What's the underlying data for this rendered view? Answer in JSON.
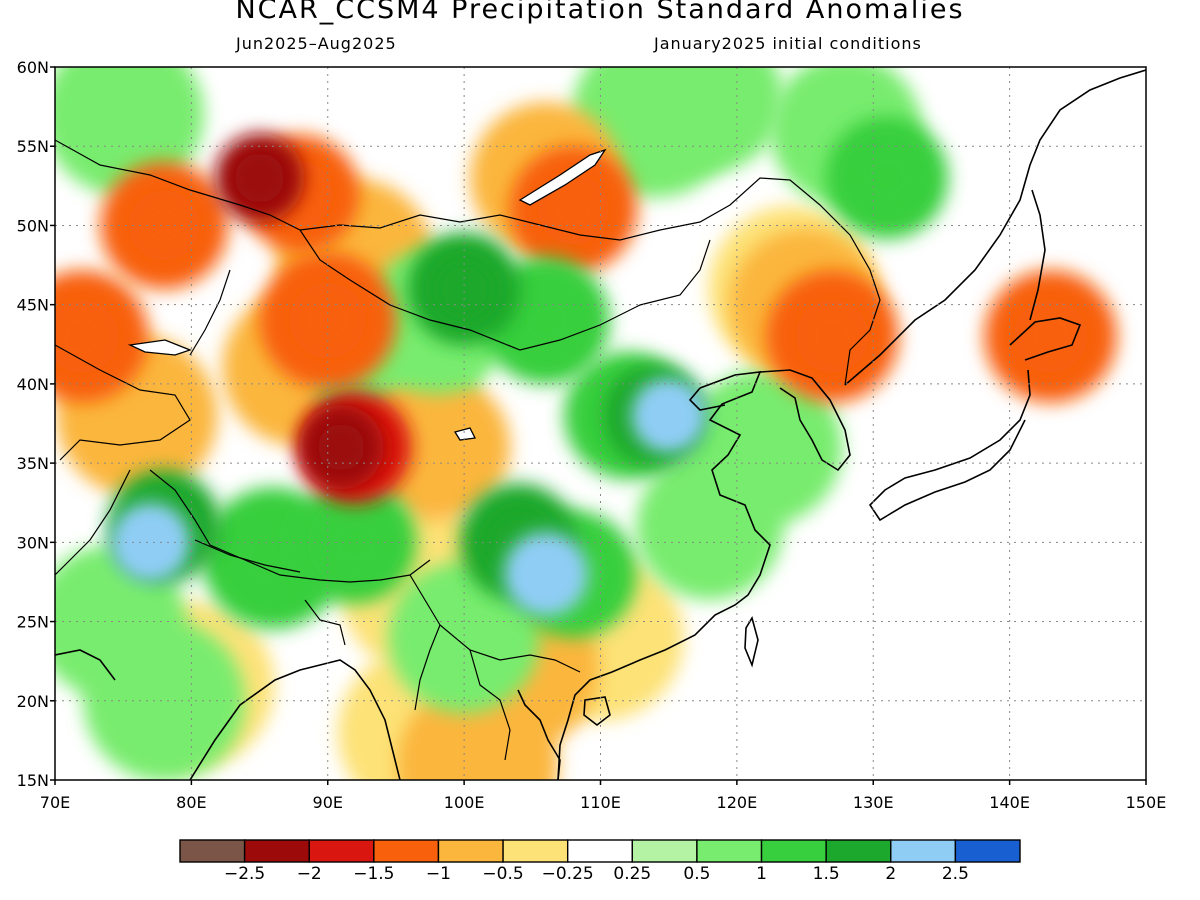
{
  "title": "NCAR_CCSM4 Precipitation Standard Anomalies",
  "subtitle_left": "Jun2025–Aug2025",
  "subtitle_right": "January2025 initial conditions",
  "axes": {
    "lat_labels": [
      "60N",
      "55N",
      "50N",
      "45N",
      "40N",
      "35N",
      "30N",
      "25N",
      "20N",
      "15N"
    ],
    "lat_values": [
      60,
      55,
      50,
      45,
      40,
      35,
      30,
      25,
      20,
      15
    ],
    "lon_labels": [
      "70E",
      "80E",
      "90E",
      "100E",
      "110E",
      "120E",
      "130E",
      "140E",
      "150E"
    ],
    "lon_values": [
      70,
      80,
      90,
      100,
      110,
      120,
      130,
      140,
      150
    ],
    "lon_range": [
      70,
      150
    ],
    "lat_range": [
      15,
      60
    ],
    "grid": "dotted"
  },
  "colorbar": {
    "colors": [
      "#7b5548",
      "#9c0a0a",
      "#d9160f",
      "#f8600c",
      "#fbb63d",
      "#fde277",
      "#ffffff",
      "#b5f3a4",
      "#78ec6e",
      "#38cf3e",
      "#1ca82c",
      "#8fcdf5",
      "#1860d1"
    ],
    "tick_labels": [
      "−2.5",
      "−2",
      "−1.5",
      "−1",
      "−0.5",
      "−0.25",
      "0.25",
      "0.5",
      "1",
      "1.5",
      "2",
      "2.5"
    ]
  },
  "anomaly_regions": [
    {
      "lon": 72,
      "lat": 43,
      "value": -1.2
    },
    {
      "lon": 78,
      "lat": 50,
      "value": -1.3
    },
    {
      "lon": 88,
      "lat": 52,
      "value": -1.5
    },
    {
      "lon": 85,
      "lat": 53,
      "value": -2.1
    },
    {
      "lon": 92,
      "lat": 48,
      "value": -0.7
    },
    {
      "lon": 88,
      "lat": 41,
      "value": -0.7
    },
    {
      "lon": 90,
      "lat": 44,
      "value": -1.1
    },
    {
      "lon": 92,
      "lat": 36,
      "value": -1.6
    },
    {
      "lon": 91,
      "lat": 36,
      "value": -2.2
    },
    {
      "lon": 98,
      "lat": 36,
      "value": -0.9
    },
    {
      "lon": 76,
      "lat": 38,
      "value": -0.6
    },
    {
      "lon": 106,
      "lat": 53,
      "value": -0.8
    },
    {
      "lon": 108,
      "lat": 51,
      "value": -1.3
    },
    {
      "lon": 125,
      "lat": 45,
      "value": -0.8
    },
    {
      "lon": 127,
      "lat": 43,
      "value": -1.2
    },
    {
      "lon": 124,
      "lat": 46,
      "value": -0.5
    },
    {
      "lon": 143,
      "lat": 43,
      "value": -1.2
    },
    {
      "lon": 104,
      "lat": 22,
      "value": -0.6
    },
    {
      "lon": 110,
      "lat": 24,
      "value": -0.5
    },
    {
      "lon": 101,
      "lat": 16,
      "value": -0.6
    },
    {
      "lon": 97,
      "lat": 18,
      "value": -0.4
    },
    {
      "lon": 97,
      "lat": 27,
      "value": -0.5
    },
    {
      "lon": 80,
      "lat": 21,
      "value": -0.5
    },
    {
      "lon": 100,
      "lat": 46,
      "value": 1.6
    },
    {
      "lon": 106,
      "lat": 44,
      "value": 1.3
    },
    {
      "lon": 98,
      "lat": 44,
      "value": 0.9
    },
    {
      "lon": 95,
      "lat": 40,
      "value": 0.7
    },
    {
      "lon": 114,
      "lat": 38,
      "value": 1.8
    },
    {
      "lon": 115,
      "lat": 38,
      "value": 2.4
    },
    {
      "lon": 112,
      "lat": 38,
      "value": 1.3
    },
    {
      "lon": 104,
      "lat": 30,
      "value": 1.5
    },
    {
      "lon": 106,
      "lat": 28,
      "value": 2.2
    },
    {
      "lon": 108,
      "lat": 28,
      "value": 1.3
    },
    {
      "lon": 78,
      "lat": 31,
      "value": 1.6
    },
    {
      "lon": 77,
      "lat": 30,
      "value": 2.3
    },
    {
      "lon": 92,
      "lat": 30,
      "value": 1.4
    },
    {
      "lon": 86,
      "lat": 29,
      "value": 1.0
    },
    {
      "lon": 74,
      "lat": 25,
      "value": 0.8
    },
    {
      "lon": 78,
      "lat": 20,
      "value": 0.6
    },
    {
      "lon": 100,
      "lat": 24,
      "value": 0.8
    },
    {
      "lon": 118,
      "lat": 31,
      "value": 0.9
    },
    {
      "lon": 131,
      "lat": 53,
      "value": 1.4
    },
    {
      "lon": 128,
      "lat": 56,
      "value": 0.8
    },
    {
      "lon": 118,
      "lat": 58,
      "value": 0.9
    },
    {
      "lon": 114,
      "lat": 57,
      "value": 0.5
    },
    {
      "lon": 75,
      "lat": 57,
      "value": 0.6
    },
    {
      "lon": 122,
      "lat": 36,
      "value": 0.7
    }
  ]
}
